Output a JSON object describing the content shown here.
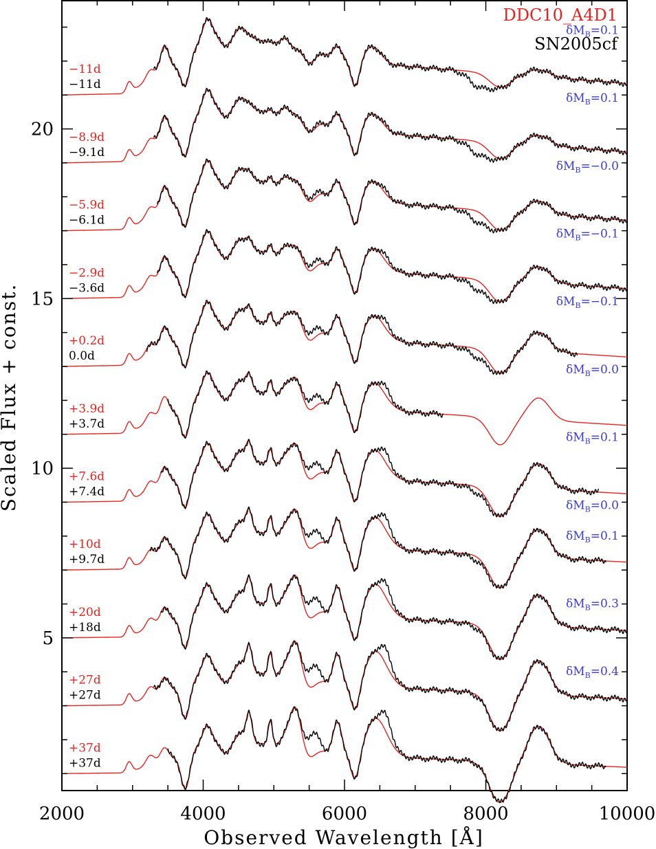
{
  "chart_data": {
    "type": "line",
    "title": "",
    "xlabel": "Observed Wavelength  [Å]",
    "ylabel": "Scaled Flux + const.",
    "xlim": [
      2000,
      10000
    ],
    "ylim": [
      0.5,
      23.8
    ],
    "x_ticks": [
      2000,
      4000,
      6000,
      8000,
      10000
    ],
    "y_ticks": [
      5,
      10,
      15,
      20
    ],
    "legend": [
      {
        "name": "DDC10_A4D1",
        "color": "#e8231f"
      },
      {
        "name": "SN2005cf",
        "color": "#000000"
      }
    ],
    "colors": {
      "model": "#e8231f",
      "observed": "#000000",
      "delta": "#3b3bd6"
    },
    "spectra": [
      {
        "model_epoch": "−11d",
        "obs_epoch": "−11d",
        "delta_mb": "δM",
        "delta_sub": "B",
        "delta_val": "=0.1",
        "offset": 21.0,
        "obs_range": [
          3300,
          10000
        ]
      },
      {
        "model_epoch": "−8.9d",
        "obs_epoch": "−9.1d",
        "delta_mb": "δM",
        "delta_sub": "B",
        "delta_val": "=0.1",
        "offset": 19.0,
        "obs_range": [
          3300,
          10000
        ]
      },
      {
        "model_epoch": "−5.9d",
        "obs_epoch": "−6.1d",
        "delta_mb": "δM",
        "delta_sub": "B",
        "delta_val": "=−0.0",
        "offset": 17.0,
        "obs_range": [
          3350,
          10000
        ]
      },
      {
        "model_epoch": "−2.9d",
        "obs_epoch": "−3.6d",
        "delta_mb": "δM",
        "delta_sub": "B",
        "delta_val": "=−0.1",
        "offset": 15.0,
        "obs_range": [
          3350,
          10000
        ]
      },
      {
        "model_epoch": "+0.2d",
        "obs_epoch": "0.0d",
        "delta_mb": "δM",
        "delta_sub": "B",
        "delta_val": "=−0.1",
        "offset": 13.0,
        "obs_range": [
          3200,
          9300
        ]
      },
      {
        "model_epoch": "+3.9d",
        "obs_epoch": "+3.7d",
        "delta_mb": "δM",
        "delta_sub": "B",
        "delta_val": "=0.0",
        "offset": 11.0,
        "obs_range": [
          3500,
          7400
        ]
      },
      {
        "model_epoch": "+7.6d",
        "obs_epoch": "+7.4d",
        "delta_mb": "δM",
        "delta_sub": "B",
        "delta_val": "=0.1",
        "offset": 9.0,
        "obs_range": [
          3400,
          9600
        ]
      },
      {
        "model_epoch": "+10d",
        "obs_epoch": "+9.7d",
        "delta_mb": "δM",
        "delta_sub": "B",
        "delta_val": "=0.0",
        "offset": 7.0,
        "obs_range": [
          3250,
          9700
        ]
      },
      {
        "model_epoch": "+20d",
        "obs_epoch": "+18d",
        "delta_mb": "δM",
        "delta_sub": "B",
        "delta_val": "=0.1",
        "offset": 5.0,
        "obs_range": [
          3400,
          10000
        ]
      },
      {
        "model_epoch": "+27d",
        "obs_epoch": "+27d",
        "delta_mb": "δM",
        "delta_sub": "B",
        "delta_val": "=0.3",
        "offset": 3.0,
        "obs_range": [
          3300,
          10000
        ]
      },
      {
        "model_epoch": "+37d",
        "obs_epoch": "+37d",
        "delta_mb": "δM",
        "delta_sub": "B",
        "delta_val": "=0.4",
        "offset": 1.0,
        "obs_range": [
          3500,
          9700
        ]
      }
    ]
  }
}
